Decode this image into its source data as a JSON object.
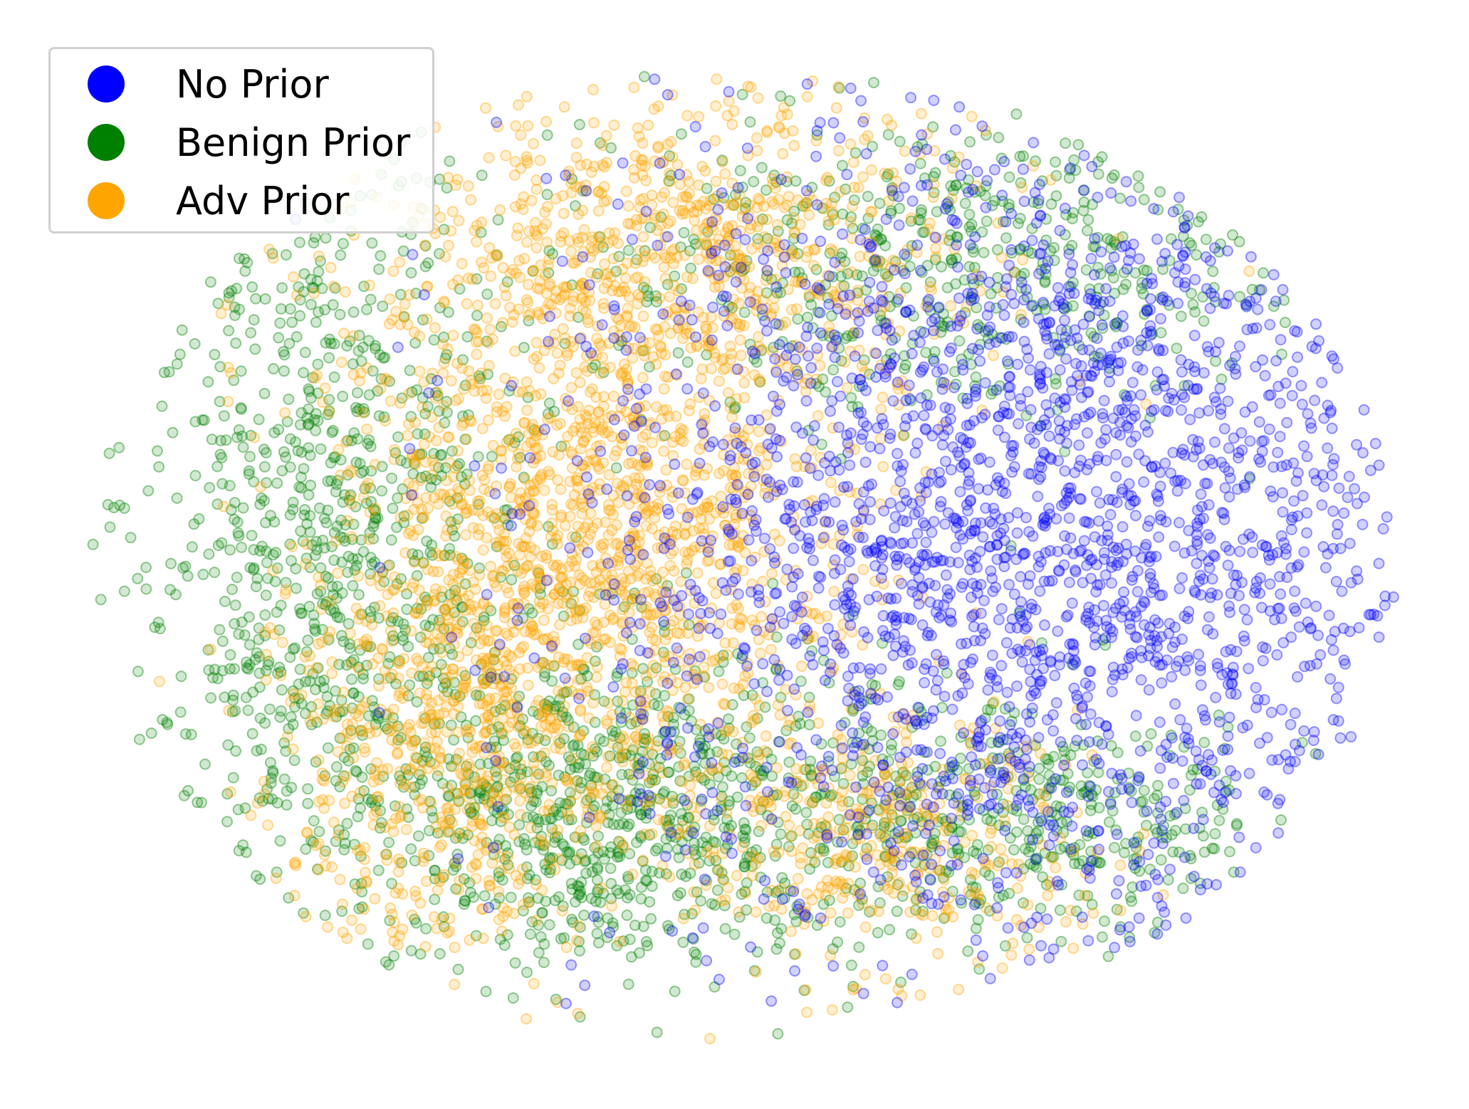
{
  "chart_data": {
    "type": "scatter",
    "title": "",
    "xlabel": "",
    "ylabel": "",
    "axes_visible": false,
    "grid": false,
    "legend_position": "top-left",
    "point_alpha": 0.3,
    "series": [
      {
        "name": "No Prior",
        "color": "#0000ff",
        "clusters": [
          {
            "center": [
              0.72,
              0.47
            ],
            "spread": [
              0.17,
              0.21
            ],
            "points": 2600
          }
        ]
      },
      {
        "name": "Benign Prior",
        "color": "#008000",
        "clusters": [
          {
            "center": [
              0.18,
              0.46
            ],
            "spread": [
              0.08,
              0.19
            ],
            "points": 900
          },
          {
            "center": [
              0.4,
              0.75
            ],
            "spread": [
              0.11,
              0.09
            ],
            "points": 900
          },
          {
            "center": [
              0.65,
              0.2
            ],
            "spread": [
              0.15,
              0.08
            ],
            "points": 600
          },
          {
            "center": [
              0.72,
              0.77
            ],
            "spread": [
              0.09,
              0.06
            ],
            "points": 400
          }
        ]
      },
      {
        "name": "Adv Prior",
        "color": "#ffa500",
        "clusters": [
          {
            "center": [
              0.38,
              0.47
            ],
            "spread": [
              0.1,
              0.14
            ],
            "points": 1500
          },
          {
            "center": [
              0.46,
              0.18
            ],
            "spread": [
              0.12,
              0.08
            ],
            "points": 700
          },
          {
            "center": [
              0.27,
              0.72
            ],
            "spread": [
              0.07,
              0.1
            ],
            "points": 500
          },
          {
            "center": [
              0.6,
              0.78
            ],
            "spread": [
              0.08,
              0.07
            ],
            "points": 400
          }
        ]
      }
    ]
  }
}
